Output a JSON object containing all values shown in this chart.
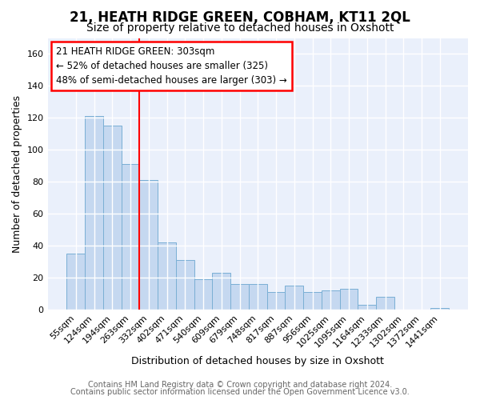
{
  "title": "21, HEATH RIDGE GREEN, COBHAM, KT11 2QL",
  "subtitle": "Size of property relative to detached houses in Oxshott",
  "xlabel": "Distribution of detached houses by size in Oxshott",
  "ylabel": "Number of detached properties",
  "categories": [
    "55sqm",
    "124sqm",
    "194sqm",
    "263sqm",
    "332sqm",
    "402sqm",
    "471sqm",
    "540sqm",
    "609sqm",
    "679sqm",
    "748sqm",
    "817sqm",
    "887sqm",
    "956sqm",
    "1025sqm",
    "1095sqm",
    "1164sqm",
    "1233sqm",
    "1302sqm",
    "1372sqm",
    "1441sqm"
  ],
  "values": [
    35,
    121,
    115,
    91,
    81,
    42,
    31,
    19,
    23,
    16,
    16,
    11,
    15,
    11,
    12,
    13,
    3,
    8,
    0,
    0,
    1
  ],
  "bar_color": "#c5d8f0",
  "bar_edge_color": "#7aafd4",
  "annotation_text": "21 HEATH RIDGE GREEN: 303sqm\n← 52% of detached houses are smaller (325)\n48% of semi-detached houses are larger (303) →",
  "annotation_box_color": "white",
  "annotation_box_edge_color": "red",
  "vline_color": "red",
  "vline_bar_index": 4,
  "ylim": [
    0,
    170
  ],
  "yticks": [
    0,
    20,
    40,
    60,
    80,
    100,
    120,
    140,
    160
  ],
  "background_color": "#eaf0fb",
  "grid_color": "white",
  "footer_line1": "Contains HM Land Registry data © Crown copyright and database right 2024.",
  "footer_line2": "Contains public sector information licensed under the Open Government Licence v3.0.",
  "title_fontsize": 12,
  "subtitle_fontsize": 10,
  "axis_label_fontsize": 9,
  "tick_fontsize": 8,
  "footer_fontsize": 7,
  "annotation_fontsize": 8.5
}
